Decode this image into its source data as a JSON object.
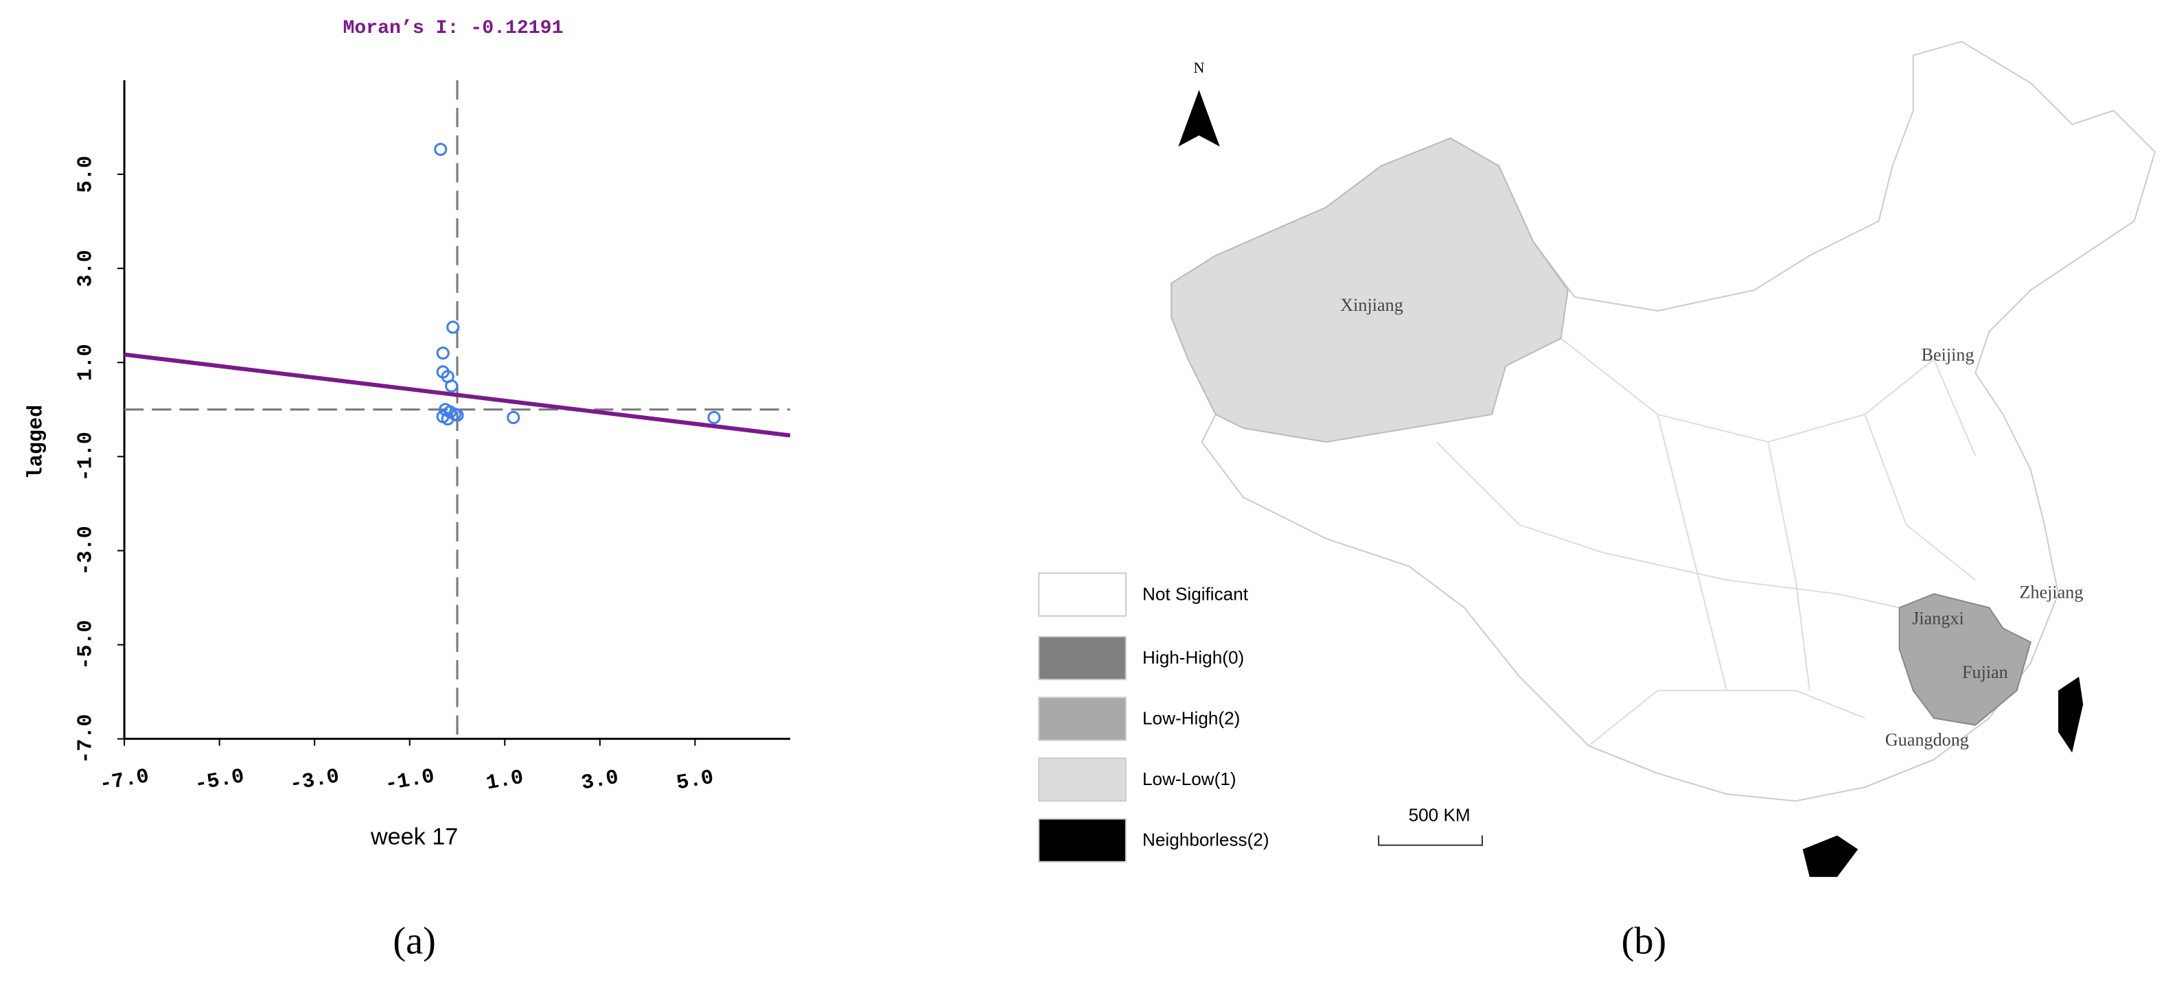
{
  "chart_data": {
    "type": "scatter",
    "title": "Moran’s I: -0.12191",
    "x_label": "week 17",
    "y_label": "lagged",
    "x": [
      -0.35,
      -0.09,
      -0.3,
      -0.3,
      -0.2,
      -0.12,
      -0.25,
      -0.15,
      -0.05,
      -0.2,
      -0.3,
      0.0,
      1.18,
      5.4
    ],
    "y": [
      5.53,
      1.75,
      1.2,
      0.8,
      0.7,
      0.5,
      0.0,
      -0.05,
      -0.1,
      -0.2,
      -0.15,
      -0.12,
      -0.17,
      -0.17
    ],
    "color": "#3d7ff0",
    "fit_line": {
      "x": [
        -7,
        7
      ],
      "y": [
        1.17,
        -0.55
      ],
      "color": "#7a1a8a"
    },
    "reference_lines": {
      "x": 0,
      "y": 0
    },
    "xlim": [
      -7,
      7
    ],
    "ylim": [
      -7,
      7
    ],
    "xticks": [
      {
        "value": -7,
        "label": "-7.0"
      },
      {
        "value": -5,
        "label": "-5.0"
      },
      {
        "value": -3,
        "label": "-3.0"
      },
      {
        "value": -1,
        "label": "-1.0"
      },
      {
        "value": 1,
        "label": "1.0"
      },
      {
        "value": 3,
        "label": "3.0"
      },
      {
        "value": 5,
        "label": "5.0"
      }
    ],
    "yticks": [
      {
        "value": -7,
        "label": "-7.0"
      },
      {
        "value": -5,
        "label": "-5.0"
      },
      {
        "value": -3,
        "label": "-3.0"
      },
      {
        "value": -1,
        "label": "-1.0"
      },
      {
        "value": 1,
        "label": "1.0"
      },
      {
        "value": 3,
        "label": "3.0"
      },
      {
        "value": 5,
        "label": "5.0"
      }
    ],
    "caption": "(a)"
  },
  "map": {
    "north": "N",
    "scale_bar": "500 KM",
    "caption": "(b)",
    "legend": [
      {
        "label": "Not Sigificant",
        "color": "#ffffff"
      },
      {
        "label": "High-High(0)",
        "color": "#808080"
      },
      {
        "label": "Low-High(2)",
        "color": "#a9a9a9"
      },
      {
        "label": "Low-Low(1)",
        "color": "#dcdcdc"
      },
      {
        "label": "Neighborless(2)",
        "color": "#000000"
      }
    ],
    "labels": [
      "Xinjiang",
      "Beijing",
      "Zhejiang",
      "Jiangxi",
      "Fujian",
      "Guangdong"
    ]
  }
}
